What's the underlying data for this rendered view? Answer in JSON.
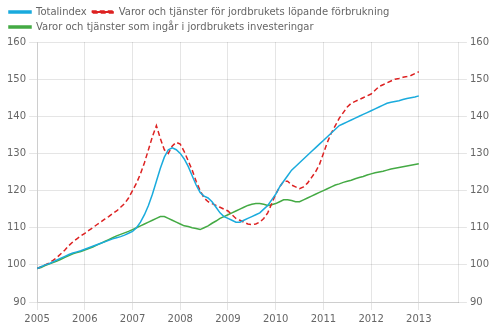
{
  "chart_data": {
    "type": "line",
    "x": [
      2005.0,
      2005.0833333333,
      2005.1666666667,
      2005.25,
      2005.3333333333,
      2005.4166666667,
      2005.5,
      2005.5833333333,
      2005.6666666667,
      2005.75,
      2005.8333333333,
      2005.9166666667,
      2006.0,
      2006.0833333333,
      2006.1666666667,
      2006.25,
      2006.3333333333,
      2006.4166666667,
      2006.5,
      2006.5833333333,
      2006.6666666667,
      2006.75,
      2006.8333333333,
      2006.9166666667,
      2007.0,
      2007.0833333333,
      2007.1666666667,
      2007.25,
      2007.3333333333,
      2007.4166666667,
      2007.5,
      2007.5833333333,
      2007.6666666667,
      2007.75,
      2007.8333333333,
      2007.9166666667,
      2008.0,
      2008.0833333333,
      2008.1666666667,
      2008.25,
      2008.3333333333,
      2008.4166666667,
      2008.5,
      2008.5833333333,
      2008.6666666667,
      2008.75,
      2008.8333333333,
      2008.9166666667,
      2009.0,
      2009.0833333333,
      2009.1666666667,
      2009.25,
      2009.3333333333,
      2009.4166666667,
      2009.5,
      2009.5833333333,
      2009.6666666667,
      2009.75,
      2009.8333333333,
      2009.9166666667,
      2010.0,
      2010.0833333333,
      2010.1666666667,
      2010.25,
      2010.3333333333,
      2010.4166666667,
      2010.5,
      2010.5833333333,
      2010.6666666667,
      2010.75,
      2010.8333333333,
      2010.9166666667,
      2011.0,
      2011.0833333333,
      2011.1666666667,
      2011.25,
      2011.3333333333,
      2011.4166666667,
      2011.5,
      2011.5833333333,
      2011.6666666667,
      2011.75,
      2011.8333333333,
      2011.9166666667,
      2012.0,
      2012.0833333333,
      2012.1666666667,
      2012.25,
      2012.3333333333,
      2012.4166666667,
      2012.5,
      2012.5833333333,
      2012.6666666667,
      2012.75,
      2012.8333333333,
      2012.9166666667,
      2013.0
    ],
    "series": [
      {
        "name": "Totalindex",
        "color": "#1aabdd",
        "line_style": "solid",
        "values": [
          99.0,
          99.5,
          100.0,
          100.3,
          100.8,
          101.3,
          101.8,
          102.3,
          102.8,
          103.2,
          103.5,
          103.8,
          104.2,
          104.6,
          105.0,
          105.4,
          105.8,
          106.2,
          106.6,
          107.0,
          107.3,
          107.6,
          108.0,
          108.5,
          109.0,
          110.0,
          111.5,
          113.5,
          116.0,
          119.0,
          122.5,
          126.0,
          129.0,
          131.0,
          131.5,
          131.0,
          130.0,
          128.5,
          126.5,
          124.0,
          121.5,
          119.5,
          118.5,
          118.0,
          117.0,
          115.5,
          114.0,
          113.0,
          112.5,
          112.0,
          111.5,
          111.5,
          112.0,
          112.5,
          113.0,
          113.5,
          114.0,
          115.0,
          116.0,
          117.5,
          119.0,
          121.0,
          122.5,
          124.0,
          125.5,
          126.5,
          127.5,
          128.5,
          129.5,
          130.5,
          131.5,
          132.5,
          133.5,
          134.5,
          135.5,
          136.5,
          137.5,
          138.0,
          138.5,
          139.0,
          139.5,
          140.0,
          140.5,
          141.0,
          141.5,
          142.0,
          142.5,
          143.0,
          143.5,
          143.8,
          144.0,
          144.2,
          144.5,
          144.8,
          145.0,
          145.2,
          145.5
        ]
      },
      {
        "name": "Varor och tjänster för jordbrukets löpande förbrukning",
        "color": "#dd2222",
        "line_style": "dashed",
        "values": [
          99.0,
          99.5,
          100.0,
          100.5,
          101.2,
          102.0,
          103.0,
          104.0,
          105.2,
          106.2,
          107.0,
          107.8,
          108.5,
          109.3,
          110.0,
          110.8,
          111.5,
          112.3,
          113.0,
          113.8,
          114.5,
          115.5,
          116.5,
          118.0,
          120.0,
          122.0,
          124.5,
          127.5,
          131.0,
          134.5,
          137.5,
          134.0,
          131.0,
          130.0,
          132.0,
          133.0,
          132.5,
          130.5,
          128.0,
          125.5,
          122.5,
          120.0,
          118.0,
          117.0,
          116.5,
          116.0,
          115.5,
          115.0,
          114.5,
          113.5,
          112.5,
          112.0,
          111.5,
          111.0,
          110.8,
          111.0,
          111.5,
          112.5,
          114.0,
          116.5,
          119.0,
          121.0,
          122.5,
          122.5,
          121.5,
          121.0,
          120.5,
          121.0,
          122.0,
          123.5,
          125.0,
          127.0,
          130.0,
          133.0,
          135.5,
          137.5,
          139.5,
          141.0,
          142.5,
          143.5,
          144.0,
          144.5,
          145.0,
          145.5,
          146.0,
          147.0,
          148.0,
          148.5,
          149.0,
          149.5,
          150.0,
          150.2,
          150.5,
          150.7,
          151.0,
          151.5,
          152.0
        ]
      },
      {
        "name": "Varor och tjänster som ingår i jordbrukets investeringar",
        "color": "#44aa44",
        "line_style": "solid",
        "values": [
          99.0,
          99.3,
          99.8,
          100.2,
          100.6,
          101.0,
          101.5,
          102.0,
          102.5,
          103.0,
          103.3,
          103.6,
          104.0,
          104.4,
          104.8,
          105.3,
          105.8,
          106.3,
          106.8,
          107.3,
          107.8,
          108.2,
          108.6,
          109.0,
          109.5,
          110.0,
          110.5,
          111.0,
          111.5,
          112.0,
          112.5,
          113.0,
          113.0,
          112.5,
          112.0,
          111.5,
          111.0,
          110.5,
          110.3,
          110.0,
          109.8,
          109.5,
          110.0,
          110.5,
          111.2,
          111.8,
          112.5,
          113.0,
          113.5,
          114.0,
          114.5,
          115.0,
          115.5,
          116.0,
          116.3,
          116.5,
          116.5,
          116.3,
          116.0,
          116.2,
          116.5,
          117.0,
          117.5,
          117.5,
          117.3,
          117.0,
          117.0,
          117.5,
          118.0,
          118.5,
          119.0,
          119.5,
          120.0,
          120.5,
          121.0,
          121.5,
          121.8,
          122.2,
          122.5,
          122.8,
          123.2,
          123.5,
          123.8,
          124.2,
          124.5,
          124.8,
          125.0,
          125.2,
          125.5,
          125.8,
          126.0,
          126.2,
          126.4,
          126.6,
          126.8,
          127.0,
          127.2
        ]
      }
    ],
    "xlim": [
      2005.0,
      2013.84
    ],
    "xticks": [
      2005,
      2006,
      2007,
      2008,
      2009,
      2010,
      2011,
      2012,
      2013
    ],
    "ylim": [
      90,
      160
    ],
    "yticks": [
      90,
      100,
      110,
      120,
      130,
      140,
      150,
      160
    ],
    "y2lim": [
      90,
      160
    ],
    "y2ticks": [
      90,
      100,
      110,
      120,
      130,
      140,
      150,
      160
    ],
    "grid": true,
    "legend": "upper left"
  }
}
